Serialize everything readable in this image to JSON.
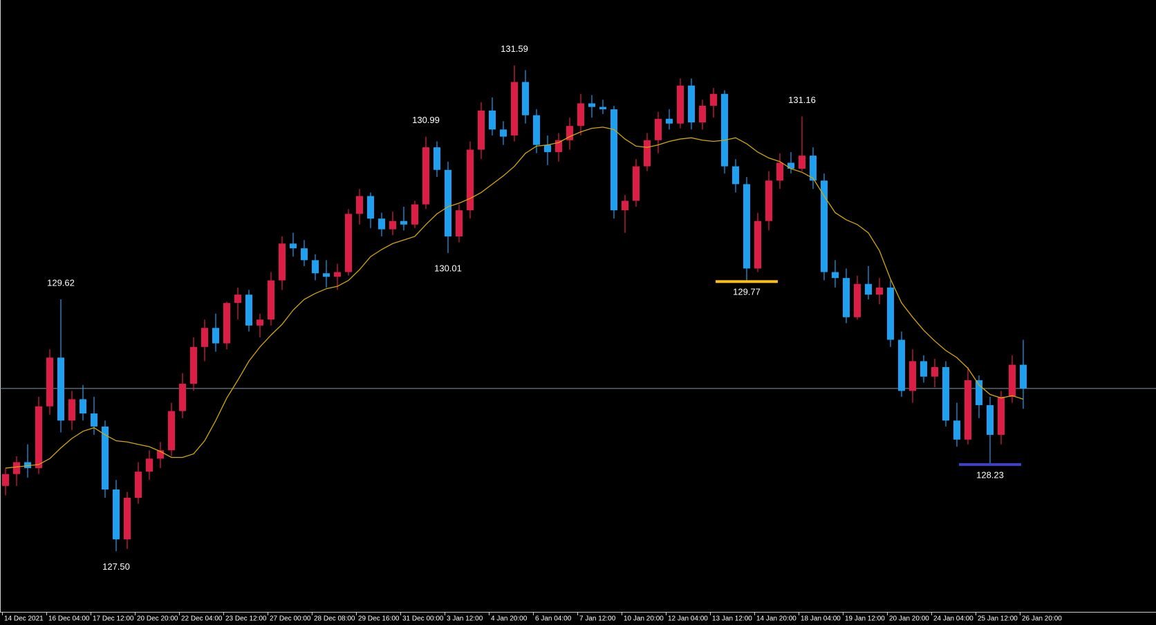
{
  "chart_data": {
    "type": "candlestick",
    "categories": [
      "14 Dec 2021",
      null,
      null,
      null,
      "16 Dec 04:00",
      null,
      null,
      null,
      "17 Dec 12:00",
      null,
      null,
      null,
      "20 Dec 20:00",
      null,
      null,
      null,
      "22 Dec 04:00",
      null,
      null,
      null,
      "23 Dec 12:00",
      null,
      null,
      null,
      "27 Dec 00:00",
      null,
      null,
      null,
      "28 Dec 08:00",
      null,
      null,
      null,
      "29 Dec 16:00",
      null,
      null,
      null,
      "31 Dec 00:00",
      null,
      null,
      null,
      "3 Jan 12:00",
      null,
      null,
      null,
      "4 Jan 20:00",
      null,
      null,
      null,
      "6 Jan 04:00",
      null,
      null,
      null,
      "7 Jan 12:00",
      null,
      null,
      null,
      "10 Jan 20:00",
      null,
      null,
      null,
      "12 Jan 04:00",
      null,
      null,
      null,
      "13 Jan 12:00",
      null,
      null,
      null,
      "14 Jan 20:00",
      null,
      null,
      null,
      "18 Jan 04:00",
      null,
      null,
      null,
      "19 Jan 12:00",
      null,
      null,
      null,
      "20 Jan 20:00",
      null,
      null,
      null,
      "24 Jan 04:00",
      null,
      null,
      null,
      "25 Jan 12:00",
      null,
      null,
      null,
      "26 Jan 20:00"
    ],
    "candles": {
      "open": [
        128.05,
        128.15,
        128.25,
        128.2,
        128.72,
        129.13,
        128.6,
        128.78,
        128.66,
        128.55,
        128.02,
        127.6,
        127.95,
        128.17,
        128.28,
        128.35,
        128.68,
        128.91,
        129.22,
        129.38,
        129.25,
        129.59,
        129.66,
        129.4,
        129.45,
        129.78,
        130.09,
        130.05,
        129.95,
        129.84,
        129.81,
        129.85,
        130.34,
        130.49,
        130.3,
        130.21,
        130.28,
        130.25,
        130.42,
        130.9,
        130.71,
        130.15,
        130.37,
        130.88,
        131.21,
        131.05,
        131.0,
        131.45,
        131.17,
        130.92,
        130.86,
        130.96,
        131.08,
        131.27,
        131.24,
        131.22,
        130.37,
        130.45,
        130.74,
        130.96,
        131.14,
        131.1,
        131.42,
        131.11,
        131.25,
        131.35,
        130.74,
        130.59,
        129.88,
        130.28,
        130.62,
        130.77,
        130.72,
        130.83,
        130.62,
        129.85,
        129.8,
        129.47,
        129.75,
        129.66,
        129.72,
        129.28,
        128.85,
        129.1,
        128.97,
        129.05,
        128.6,
        128.44,
        128.94,
        128.73,
        128.48,
        128.8,
        129.07
      ],
      "high": [
        128.2,
        128.3,
        128.4,
        128.8,
        129.2,
        129.62,
        128.85,
        128.9,
        128.8,
        128.6,
        128.1,
        128.0,
        128.25,
        128.35,
        128.42,
        128.75,
        129.0,
        129.3,
        129.45,
        129.5,
        129.6,
        129.72,
        129.7,
        129.5,
        129.85,
        130.15,
        130.18,
        130.12,
        130.0,
        129.95,
        129.92,
        130.38,
        130.55,
        130.52,
        130.35,
        130.36,
        130.4,
        130.45,
        130.99,
        130.95,
        130.78,
        130.42,
        130.95,
        131.28,
        131.32,
        131.12,
        131.59,
        131.55,
        131.22,
        131.0,
        131.02,
        131.15,
        131.35,
        131.34,
        131.3,
        131.25,
        130.5,
        130.8,
        131.02,
        131.2,
        131.22,
        131.48,
        131.48,
        131.3,
        131.4,
        131.38,
        130.8,
        130.65,
        130.35,
        130.7,
        130.85,
        130.86,
        131.16,
        130.9,
        130.68,
        129.95,
        129.88,
        129.82,
        129.9,
        129.8,
        129.78,
        129.35,
        129.2,
        129.15,
        129.12,
        129.1,
        128.75,
        129.05,
        128.98,
        128.8,
        128.85,
        129.15,
        129.28
      ],
      "low": [
        127.97,
        128.05,
        128.12,
        128.15,
        128.65,
        128.5,
        128.52,
        128.6,
        128.48,
        127.95,
        127.5,
        127.52,
        127.9,
        128.1,
        128.2,
        128.3,
        128.62,
        128.85,
        129.1,
        129.18,
        129.2,
        129.45,
        129.35,
        129.3,
        129.4,
        129.7,
        129.98,
        129.9,
        129.78,
        129.72,
        129.7,
        129.82,
        130.25,
        130.22,
        130.15,
        130.16,
        130.2,
        130.22,
        130.38,
        130.65,
        130.01,
        130.1,
        130.3,
        130.8,
        131.0,
        130.92,
        130.95,
        131.1,
        130.85,
        130.75,
        130.78,
        130.88,
        131.0,
        131.15,
        131.18,
        130.3,
        130.18,
        130.4,
        130.7,
        130.85,
        131.05,
        131.06,
        131.05,
        131.05,
        131.15,
        130.68,
        130.52,
        129.77,
        129.85,
        130.2,
        130.55,
        130.68,
        130.7,
        130.55,
        129.78,
        129.72,
        129.42,
        129.45,
        129.62,
        129.58,
        129.22,
        128.8,
        128.75,
        128.92,
        128.88,
        128.55,
        128.38,
        128.4,
        128.62,
        128.23,
        128.4,
        128.75,
        128.7
      ],
      "close": [
        128.15,
        128.25,
        128.2,
        128.72,
        129.13,
        128.6,
        128.78,
        128.66,
        128.55,
        128.02,
        127.6,
        127.95,
        128.17,
        128.28,
        128.35,
        128.68,
        128.91,
        129.22,
        129.38,
        129.25,
        129.59,
        129.66,
        129.4,
        129.45,
        129.78,
        130.09,
        130.05,
        129.95,
        129.84,
        129.81,
        129.85,
        130.34,
        130.49,
        130.3,
        130.21,
        130.28,
        130.25,
        130.42,
        130.9,
        130.71,
        130.15,
        130.37,
        130.88,
        131.21,
        131.05,
        130.99,
        131.45,
        131.17,
        130.92,
        130.86,
        130.96,
        131.08,
        131.27,
        131.24,
        131.22,
        130.37,
        130.45,
        130.74,
        130.96,
        131.14,
        131.1,
        131.42,
        131.11,
        131.25,
        131.35,
        130.74,
        130.59,
        129.88,
        130.28,
        130.62,
        130.77,
        130.72,
        130.83,
        130.62,
        129.85,
        129.8,
        129.47,
        129.75,
        129.66,
        129.72,
        129.28,
        128.85,
        129.1,
        128.97,
        129.05,
        128.6,
        128.44,
        128.94,
        128.73,
        128.48,
        128.8,
        129.07,
        128.87
      ]
    },
    "up_color": "#dc1e46",
    "down_color": "#1ea0f0",
    "ma": {
      "color": "#d4a800",
      "values": [
        128.2,
        128.21,
        128.22,
        128.23,
        128.28,
        128.37,
        128.45,
        128.51,
        128.54,
        128.48,
        128.43,
        128.42,
        128.4,
        128.38,
        128.34,
        128.29,
        128.29,
        128.32,
        128.43,
        128.6,
        128.79,
        128.94,
        129.1,
        129.22,
        129.32,
        129.41,
        129.53,
        129.62,
        129.67,
        129.71,
        129.73,
        129.78,
        129.87,
        129.98,
        130.04,
        130.09,
        130.12,
        130.15,
        130.25,
        130.34,
        130.4,
        130.43,
        130.47,
        130.52,
        130.59,
        130.66,
        130.74,
        130.85,
        130.91,
        130.92,
        130.94,
        130.99,
        131.03,
        131.06,
        131.07,
        131.05,
        130.97,
        130.91,
        130.9,
        130.92,
        130.95,
        130.97,
        130.98,
        130.96,
        130.95,
        130.96,
        130.98,
        130.93,
        130.86,
        130.81,
        130.78,
        130.72,
        130.69,
        130.64,
        130.49,
        130.35,
        130.29,
        130.25,
        130.18,
        130.03,
        129.79,
        129.59,
        129.47,
        129.36,
        129.27,
        129.19,
        129.13,
        129.04,
        128.9,
        128.82,
        128.79,
        128.81,
        128.78
      ]
    },
    "current_price": {
      "value": 128.87,
      "color": "#8296aa"
    },
    "annotations": [
      {
        "value": 129.62,
        "label": "129.62",
        "at": "high"
      },
      {
        "value": 127.5,
        "label": "127.50",
        "at": "low"
      },
      {
        "value": 130.99,
        "label": "130.99",
        "at": "high"
      },
      {
        "value": 130.01,
        "label": "130.01",
        "at": "low"
      },
      {
        "value": 131.59,
        "label": "131.59",
        "at": "high"
      },
      {
        "value": 131.16,
        "label": "131.16",
        "at": "high"
      },
      {
        "value": 129.77,
        "label": "129.77",
        "at": "low",
        "color": "#ffc000"
      },
      {
        "value": 128.23,
        "label": "128.23",
        "at": "low",
        "color": "#4040c8"
      }
    ],
    "ylim": [
      126.99,
      132.14
    ]
  }
}
